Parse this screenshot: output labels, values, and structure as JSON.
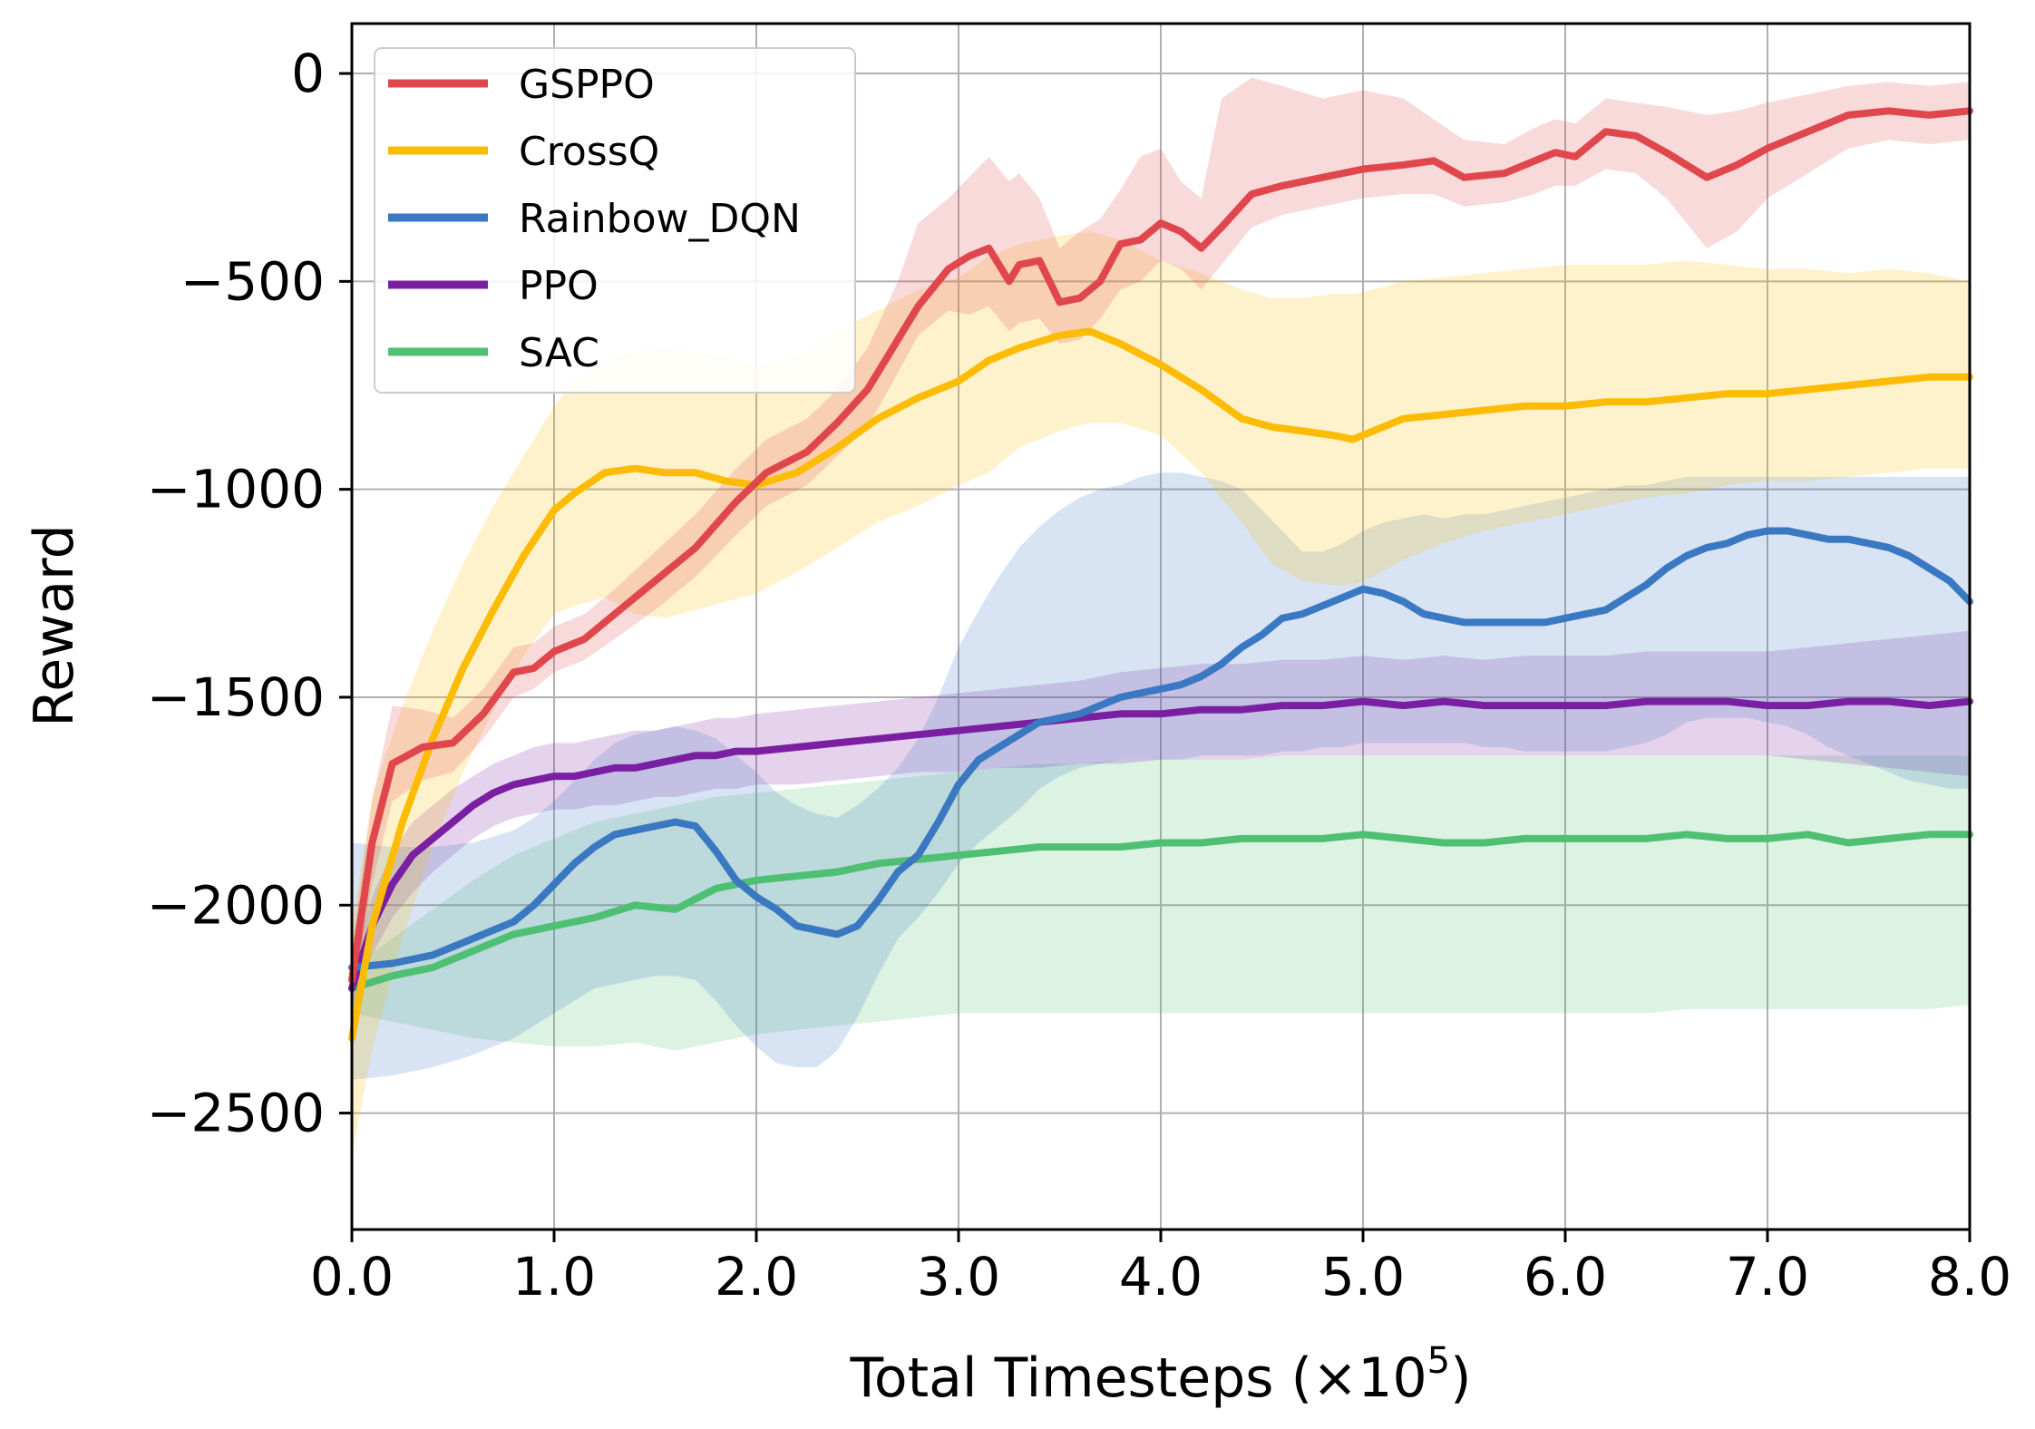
{
  "chart_data": {
    "type": "line",
    "title": "",
    "xlabel": "Total Timesteps (×10",
    "xlabel_exponent": "5",
    "xlabel_suffix": ")",
    "ylabel": "Reward",
    "xlim": [
      0,
      8
    ],
    "ylim": [
      -2780,
      120
    ],
    "xticks": [
      0,
      1,
      2,
      3,
      4,
      5,
      6,
      7,
      8
    ],
    "xtick_labels": [
      "0.0",
      "1.0",
      "2.0",
      "3.0",
      "4.0",
      "5.0",
      "6.0",
      "7.0",
      "8.0"
    ],
    "yticks": [
      0,
      -500,
      -1000,
      -1500,
      -2000,
      -2500
    ],
    "ytick_labels": [
      "0",
      "−500",
      "−1000",
      "−1500",
      "−2000",
      "−2500"
    ],
    "grid": true,
    "legend_position": "top-left",
    "series": [
      {
        "name": "GSPPO",
        "color": "#e0474c",
        "x": [
          0,
          0.1,
          0.2,
          0.35,
          0.5,
          0.65,
          0.8,
          0.9,
          1.0,
          1.15,
          1.3,
          1.5,
          1.7,
          1.9,
          2.05,
          2.25,
          2.4,
          2.55,
          2.7,
          2.8,
          2.95,
          3.05,
          3.15,
          3.25,
          3.3,
          3.4,
          3.5,
          3.6,
          3.7,
          3.8,
          3.9,
          4.0,
          4.1,
          4.2,
          4.3,
          4.45,
          4.6,
          4.8,
          5.0,
          5.2,
          5.35,
          5.5,
          5.7,
          5.85,
          5.95,
          6.05,
          6.2,
          6.35,
          6.5,
          6.7,
          6.85,
          7.0,
          7.2,
          7.4,
          7.6,
          7.8,
          8.0
        ],
        "values": [
          -2180,
          -1850,
          -1660,
          -1620,
          -1610,
          -1540,
          -1440,
          -1430,
          -1390,
          -1360,
          -1300,
          -1220,
          -1140,
          -1030,
          -960,
          -910,
          -840,
          -760,
          -640,
          -560,
          -470,
          -440,
          -420,
          -500,
          -460,
          -450,
          -550,
          -540,
          -500,
          -410,
          -400,
          -360,
          -380,
          -420,
          -370,
          -290,
          -270,
          -250,
          -230,
          -220,
          -210,
          -250,
          -240,
          -210,
          -190,
          -200,
          -140,
          -150,
          -190,
          -250,
          -220,
          -180,
          -140,
          -100,
          -90,
          -100,
          -90
        ],
        "lower": [
          -2250,
          -1950,
          -1750,
          -1700,
          -1680,
          -1600,
          -1500,
          -1480,
          -1440,
          -1410,
          -1360,
          -1290,
          -1210,
          -1110,
          -1040,
          -990,
          -920,
          -850,
          -720,
          -630,
          -570,
          -580,
          -560,
          -620,
          -600,
          -590,
          -650,
          -640,
          -590,
          -520,
          -500,
          -450,
          -470,
          -520,
          -460,
          -370,
          -340,
          -320,
          -300,
          -290,
          -290,
          -320,
          -310,
          -290,
          -270,
          -270,
          -230,
          -240,
          -300,
          -420,
          -380,
          -300,
          -240,
          -180,
          -160,
          -170,
          -160
        ],
        "upper": [
          -2100,
          -1750,
          -1520,
          -1530,
          -1550,
          -1480,
          -1380,
          -1370,
          -1330,
          -1300,
          -1240,
          -1150,
          -1060,
          -950,
          -880,
          -830,
          -760,
          -660,
          -500,
          -360,
          -300,
          -250,
          -200,
          -260,
          -240,
          -300,
          -420,
          -380,
          -350,
          -280,
          -200,
          -180,
          -260,
          -300,
          -60,
          -10,
          -30,
          -60,
          -40,
          -60,
          -110,
          -160,
          -170,
          -130,
          -110,
          -120,
          -60,
          -70,
          -80,
          -100,
          -90,
          -70,
          -50,
          -30,
          -20,
          -30,
          -20
        ]
      },
      {
        "name": "CrossQ",
        "color": "#fcbc05",
        "x": [
          0,
          0.1,
          0.25,
          0.4,
          0.55,
          0.7,
          0.85,
          1.0,
          1.1,
          1.25,
          1.4,
          1.55,
          1.7,
          1.85,
          2.0,
          2.2,
          2.4,
          2.6,
          2.8,
          3.0,
          3.15,
          3.3,
          3.5,
          3.65,
          3.8,
          4.0,
          4.2,
          4.4,
          4.55,
          4.7,
          4.85,
          4.95,
          5.05,
          5.2,
          5.4,
          5.6,
          5.8,
          6.0,
          6.2,
          6.4,
          6.6,
          6.8,
          7.0,
          7.2,
          7.4,
          7.6,
          7.8,
          8.0
        ],
        "values": [
          -2320,
          -2050,
          -1800,
          -1600,
          -1430,
          -1290,
          -1160,
          -1050,
          -1010,
          -960,
          -950,
          -960,
          -960,
          -980,
          -990,
          -960,
          -900,
          -830,
          -780,
          -740,
          -690,
          -660,
          -630,
          -620,
          -650,
          -700,
          -760,
          -830,
          -850,
          -860,
          -870,
          -880,
          -860,
          -830,
          -820,
          -810,
          -800,
          -800,
          -790,
          -790,
          -780,
          -770,
          -770,
          -760,
          -750,
          -740,
          -730,
          -730
        ],
        "lower": [
          -2600,
          -2350,
          -2080,
          -1860,
          -1680,
          -1530,
          -1400,
          -1300,
          -1280,
          -1260,
          -1300,
          -1310,
          -1290,
          -1270,
          -1250,
          -1200,
          -1140,
          -1080,
          -1040,
          -990,
          -960,
          -900,
          -860,
          -840,
          -840,
          -870,
          -960,
          -1080,
          -1180,
          -1220,
          -1230,
          -1230,
          -1210,
          -1170,
          -1130,
          -1100,
          -1080,
          -1060,
          -1040,
          -1020,
          -1010,
          -990,
          -980,
          -980,
          -970,
          -960,
          -950,
          -950
        ],
        "upper": [
          -2050,
          -1740,
          -1520,
          -1340,
          -1180,
          -1040,
          -920,
          -800,
          -740,
          -690,
          -670,
          -660,
          -670,
          -680,
          -700,
          -680,
          -620,
          -570,
          -520,
          -490,
          -440,
          -410,
          -390,
          -380,
          -400,
          -450,
          -480,
          -520,
          -540,
          -540,
          -530,
          -530,
          -520,
          -500,
          -490,
          -480,
          -470,
          -460,
          -460,
          -460,
          -450,
          -460,
          -470,
          -470,
          -480,
          -470,
          -480,
          -500
        ]
      },
      {
        "name": "Rainbow_DQN",
        "color": "#3a78c2",
        "x": [
          0,
          0.2,
          0.4,
          0.6,
          0.8,
          0.9,
          1.0,
          1.1,
          1.2,
          1.3,
          1.4,
          1.5,
          1.6,
          1.7,
          1.8,
          1.9,
          2.0,
          2.1,
          2.2,
          2.3,
          2.4,
          2.5,
          2.6,
          2.7,
          2.8,
          2.9,
          3.0,
          3.1,
          3.2,
          3.3,
          3.4,
          3.5,
          3.6,
          3.7,
          3.8,
          3.9,
          4.0,
          4.1,
          4.2,
          4.3,
          4.4,
          4.5,
          4.6,
          4.7,
          4.8,
          4.9,
          5.0,
          5.1,
          5.2,
          5.3,
          5.4,
          5.5,
          5.6,
          5.7,
          5.8,
          5.9,
          6.0,
          6.1,
          6.2,
          6.3,
          6.4,
          6.5,
          6.6,
          6.7,
          6.8,
          6.9,
          7.0,
          7.1,
          7.2,
          7.3,
          7.4,
          7.5,
          7.6,
          7.7,
          7.8,
          7.9,
          8.0
        ],
        "values": [
          -2150,
          -2140,
          -2120,
          -2080,
          -2040,
          -2000,
          -1950,
          -1900,
          -1860,
          -1830,
          -1820,
          -1810,
          -1800,
          -1810,
          -1870,
          -1940,
          -1980,
          -2010,
          -2050,
          -2060,
          -2070,
          -2050,
          -1990,
          -1920,
          -1880,
          -1800,
          -1710,
          -1650,
          -1620,
          -1590,
          -1560,
          -1550,
          -1540,
          -1520,
          -1500,
          -1490,
          -1480,
          -1470,
          -1450,
          -1420,
          -1380,
          -1350,
          -1310,
          -1300,
          -1280,
          -1260,
          -1240,
          -1250,
          -1270,
          -1300,
          -1310,
          -1320,
          -1320,
          -1320,
          -1320,
          -1320,
          -1310,
          -1300,
          -1290,
          -1260,
          -1230,
          -1190,
          -1160,
          -1140,
          -1130,
          -1110,
          -1100,
          -1100,
          -1110,
          -1120,
          -1120,
          -1130,
          -1140,
          -1160,
          -1190,
          -1220,
          -1270
        ],
        "lower": [
          -2420,
          -2410,
          -2390,
          -2360,
          -2320,
          -2290,
          -2260,
          -2230,
          -2200,
          -2190,
          -2180,
          -2170,
          -2170,
          -2180,
          -2230,
          -2290,
          -2340,
          -2380,
          -2390,
          -2390,
          -2350,
          -2270,
          -2170,
          -2080,
          -2030,
          -1970,
          -1900,
          -1850,
          -1810,
          -1770,
          -1720,
          -1690,
          -1670,
          -1660,
          -1650,
          -1650,
          -1650,
          -1650,
          -1640,
          -1640,
          -1640,
          -1640,
          -1630,
          -1630,
          -1620,
          -1620,
          -1610,
          -1610,
          -1610,
          -1610,
          -1610,
          -1610,
          -1620,
          -1620,
          -1630,
          -1630,
          -1630,
          -1630,
          -1630,
          -1620,
          -1610,
          -1590,
          -1560,
          -1550,
          -1550,
          -1550,
          -1560,
          -1570,
          -1590,
          -1620,
          -1640,
          -1660,
          -1680,
          -1700,
          -1710,
          -1720,
          -1720
        ],
        "upper": [
          -1850,
          -1860,
          -1860,
          -1850,
          -1820,
          -1790,
          -1750,
          -1700,
          -1650,
          -1610,
          -1590,
          -1580,
          -1570,
          -1580,
          -1600,
          -1640,
          -1680,
          -1730,
          -1760,
          -1780,
          -1790,
          -1760,
          -1720,
          -1670,
          -1600,
          -1500,
          -1380,
          -1290,
          -1210,
          -1140,
          -1090,
          -1050,
          -1020,
          -1000,
          -990,
          -970,
          -960,
          -960,
          -970,
          -980,
          -1000,
          -1050,
          -1100,
          -1150,
          -1150,
          -1130,
          -1100,
          -1080,
          -1070,
          -1060,
          -1070,
          -1060,
          -1060,
          -1050,
          -1040,
          -1030,
          -1020,
          -1010,
          -1000,
          -990,
          -990,
          -980,
          -970,
          -970,
          -970,
          -970,
          -970,
          -970,
          -970,
          -970,
          -970,
          -970,
          -970,
          -970,
          -970,
          -970,
          -970
        ]
      },
      {
        "name": "PPO",
        "color": "#7b1fa2",
        "x": [
          0,
          0.1,
          0.2,
          0.3,
          0.4,
          0.5,
          0.6,
          0.7,
          0.8,
          0.9,
          1.0,
          1.1,
          1.2,
          1.3,
          1.4,
          1.5,
          1.6,
          1.7,
          1.8,
          1.9,
          2.0,
          2.2,
          2.4,
          2.6,
          2.8,
          3.0,
          3.2,
          3.4,
          3.6,
          3.8,
          4.0,
          4.2,
          4.4,
          4.6,
          4.8,
          5.0,
          5.2,
          5.4,
          5.6,
          5.8,
          6.0,
          6.2,
          6.4,
          6.6,
          6.8,
          7.0,
          7.2,
          7.4,
          7.6,
          7.8,
          8.0
        ],
        "values": [
          -2200,
          -2050,
          -1950,
          -1880,
          -1840,
          -1800,
          -1760,
          -1730,
          -1710,
          -1700,
          -1690,
          -1690,
          -1680,
          -1670,
          -1670,
          -1660,
          -1650,
          -1640,
          -1640,
          -1630,
          -1630,
          -1620,
          -1610,
          -1600,
          -1590,
          -1580,
          -1570,
          -1560,
          -1550,
          -1540,
          -1540,
          -1530,
          -1530,
          -1520,
          -1520,
          -1510,
          -1520,
          -1510,
          -1520,
          -1520,
          -1520,
          -1520,
          -1510,
          -1510,
          -1510,
          -1520,
          -1520,
          -1510,
          -1510,
          -1520,
          -1510
        ],
        "lower": [
          -2250,
          -2120,
          -2030,
          -1970,
          -1920,
          -1880,
          -1840,
          -1810,
          -1790,
          -1780,
          -1770,
          -1770,
          -1760,
          -1760,
          -1750,
          -1740,
          -1740,
          -1730,
          -1720,
          -1720,
          -1710,
          -1710,
          -1700,
          -1690,
          -1680,
          -1680,
          -1670,
          -1670,
          -1660,
          -1660,
          -1650,
          -1650,
          -1650,
          -1640,
          -1640,
          -1640,
          -1640,
          -1640,
          -1640,
          -1640,
          -1640,
          -1640,
          -1640,
          -1640,
          -1640,
          -1640,
          -1650,
          -1660,
          -1670,
          -1680,
          -1690
        ],
        "upper": [
          -2150,
          -1980,
          -1870,
          -1800,
          -1760,
          -1720,
          -1690,
          -1660,
          -1640,
          -1620,
          -1610,
          -1610,
          -1600,
          -1590,
          -1580,
          -1580,
          -1570,
          -1560,
          -1550,
          -1550,
          -1540,
          -1530,
          -1520,
          -1510,
          -1500,
          -1490,
          -1480,
          -1470,
          -1460,
          -1440,
          -1430,
          -1420,
          -1420,
          -1410,
          -1410,
          -1400,
          -1410,
          -1400,
          -1410,
          -1400,
          -1400,
          -1400,
          -1390,
          -1390,
          -1390,
          -1390,
          -1380,
          -1370,
          -1360,
          -1350,
          -1340
        ]
      },
      {
        "name": "SAC",
        "color": "#4fbf73",
        "x": [
          0,
          0.2,
          0.4,
          0.6,
          0.8,
          1.0,
          1.2,
          1.4,
          1.6,
          1.8,
          2.0,
          2.2,
          2.4,
          2.6,
          2.8,
          3.0,
          3.2,
          3.4,
          3.6,
          3.8,
          4.0,
          4.2,
          4.4,
          4.6,
          4.8,
          5.0,
          5.2,
          5.4,
          5.6,
          5.8,
          6.0,
          6.2,
          6.4,
          6.6,
          6.8,
          7.0,
          7.2,
          7.4,
          7.6,
          7.8,
          8.0
        ],
        "values": [
          -2200,
          -2170,
          -2150,
          -2110,
          -2070,
          -2050,
          -2030,
          -2000,
          -2010,
          -1960,
          -1940,
          -1930,
          -1920,
          -1900,
          -1890,
          -1880,
          -1870,
          -1860,
          -1860,
          -1860,
          -1850,
          -1850,
          -1840,
          -1840,
          -1840,
          -1830,
          -1840,
          -1850,
          -1850,
          -1840,
          -1840,
          -1840,
          -1840,
          -1830,
          -1840,
          -1840,
          -1830,
          -1850,
          -1840,
          -1830,
          -1830
        ],
        "lower": [
          -2260,
          -2280,
          -2300,
          -2320,
          -2330,
          -2340,
          -2340,
          -2330,
          -2350,
          -2330,
          -2310,
          -2300,
          -2290,
          -2280,
          -2270,
          -2260,
          -2260,
          -2260,
          -2260,
          -2260,
          -2260,
          -2260,
          -2260,
          -2260,
          -2260,
          -2260,
          -2260,
          -2260,
          -2260,
          -2260,
          -2260,
          -2260,
          -2260,
          -2250,
          -2250,
          -2250,
          -2250,
          -2250,
          -2250,
          -2250,
          -2240
        ],
        "upper": [
          -2150,
          -2080,
          -2010,
          -1940,
          -1880,
          -1840,
          -1800,
          -1780,
          -1760,
          -1740,
          -1730,
          -1720,
          -1710,
          -1700,
          -1690,
          -1680,
          -1670,
          -1660,
          -1660,
          -1650,
          -1650,
          -1650,
          -1650,
          -1640,
          -1640,
          -1640,
          -1640,
          -1640,
          -1640,
          -1640,
          -1640,
          -1640,
          -1640,
          -1640,
          -1640,
          -1640,
          -1640,
          -1640,
          -1640,
          -1640,
          -1640
        ]
      }
    ]
  }
}
